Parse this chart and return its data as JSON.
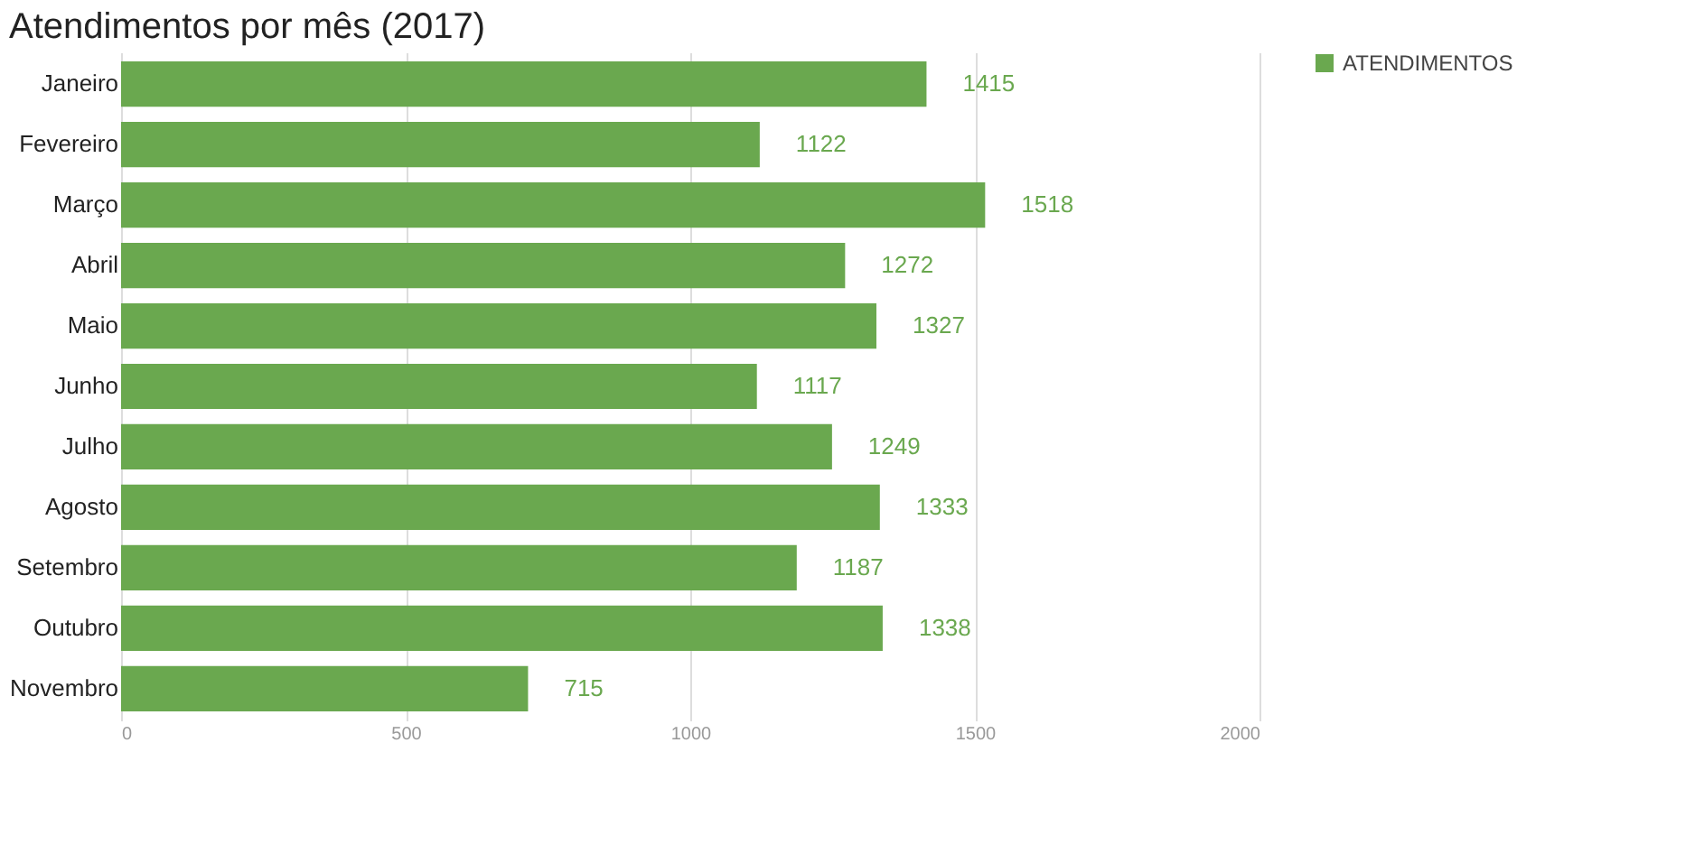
{
  "chart_data": {
    "type": "bar",
    "orientation": "horizontal",
    "title": "Atendimentos por mês (2017)",
    "categories": [
      "Janeiro",
      "Fevereiro",
      "Março",
      "Abril",
      "Maio",
      "Junho",
      "Julho",
      "Agosto",
      "Setembro",
      "Outubro",
      "Novembro"
    ],
    "series": [
      {
        "name": "ATENDIMENTOS",
        "color": "#6aa84f",
        "values": [
          1415,
          1122,
          1518,
          1272,
          1327,
          1117,
          1249,
          1333,
          1187,
          1338,
          715
        ]
      }
    ],
    "xlim": [
      0,
      2000
    ],
    "xticks": [
      0,
      500,
      1000,
      1500,
      2000
    ],
    "grid": "x",
    "legend": "top right",
    "data_labels": true
  }
}
